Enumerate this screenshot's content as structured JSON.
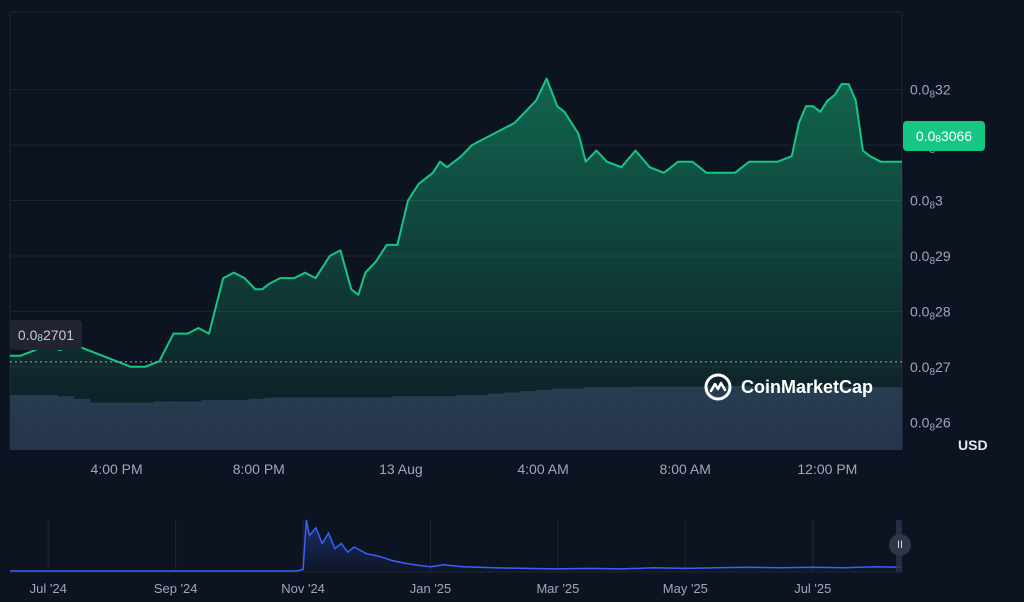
{
  "chart_data": [
    {
      "type": "area",
      "currency": "USD",
      "current_price": {
        "prefix": "0.0",
        "subscript": "8",
        "digits": "3066"
      },
      "open_price": {
        "prefix": "0.0",
        "subscript": "8",
        "digits": "2701"
      },
      "y_ticks": [
        {
          "value": 2.6e-09,
          "prefix": "0.0",
          "subscript": "8",
          "digits": "26"
        },
        {
          "value": 2.7e-09,
          "prefix": "0.0",
          "subscript": "8",
          "digits": "27"
        },
        {
          "value": 2.8e-09,
          "prefix": "0.0",
          "subscript": "8",
          "digits": "28"
        },
        {
          "value": 2.9e-09,
          "prefix": "0.0",
          "subscript": "8",
          "digits": "29"
        },
        {
          "value": 3e-09,
          "prefix": "0.0",
          "subscript": "8",
          "digits": "3"
        },
        {
          "value": 3.1e-09,
          "prefix": "0.0",
          "subscript": "8",
          "digits": "31"
        },
        {
          "value": 3.2e-09,
          "prefix": "0.0",
          "subscript": "8",
          "digits": "32"
        }
      ],
      "ylim": [
        2.55e-09,
        3.34e-09
      ],
      "x_ticks": [
        "4:00 PM",
        "8:00 PM",
        "13 Aug",
        "4:00 AM",
        "8:00 AM",
        "12:00 PM"
      ],
      "x_tick_hours": [
        16,
        20,
        24,
        28,
        32,
        36
      ],
      "xlim_hours": [
        13,
        38.1
      ],
      "series": [
        {
          "x_hours": [
            13.0,
            13.3,
            13.7,
            14.0,
            14.4,
            14.8,
            15.2,
            15.6,
            16.0,
            16.4,
            16.8,
            17.2,
            17.6,
            18.0,
            18.3,
            18.6,
            19.0,
            19.3,
            19.6,
            19.9,
            20.1,
            20.3,
            20.6,
            21.0,
            21.3,
            21.6,
            22.0,
            22.3,
            22.6,
            22.8,
            23.0,
            23.3,
            23.6,
            23.9,
            24.2,
            24.5,
            24.7,
            24.9,
            25.1,
            25.3,
            25.5,
            25.7,
            26.0,
            26.3,
            26.6,
            26.9,
            27.2,
            27.5,
            27.8,
            28.1,
            28.4,
            28.6,
            28.8,
            29.0,
            29.2,
            29.5,
            29.8,
            30.2,
            30.6,
            31.0,
            31.4,
            31.8,
            32.2,
            32.6,
            33.0,
            33.4,
            33.8,
            34.2,
            34.6,
            35.0,
            35.2,
            35.4,
            35.6,
            35.8,
            36.0,
            36.2,
            36.4,
            36.6,
            36.8,
            37.0,
            37.2,
            37.5,
            37.8,
            38.1
          ],
          "values": [
            2.72e-09,
            2.72e-09,
            2.73e-09,
            2.74e-09,
            2.73e-09,
            2.74e-09,
            2.73e-09,
            2.72e-09,
            2.71e-09,
            2.7e-09,
            2.7e-09,
            2.71e-09,
            2.76e-09,
            2.76e-09,
            2.77e-09,
            2.76e-09,
            2.86e-09,
            2.87e-09,
            2.86e-09,
            2.84e-09,
            2.84e-09,
            2.85e-09,
            2.86e-09,
            2.86e-09,
            2.87e-09,
            2.86e-09,
            2.9e-09,
            2.91e-09,
            2.84e-09,
            2.83e-09,
            2.87e-09,
            2.89e-09,
            2.92e-09,
            2.92e-09,
            3e-09,
            3.03e-09,
            3.04e-09,
            3.05e-09,
            3.07e-09,
            3.06e-09,
            3.07e-09,
            3.08e-09,
            3.1e-09,
            3.11e-09,
            3.12e-09,
            3.13e-09,
            3.14e-09,
            3.16e-09,
            3.18e-09,
            3.22e-09,
            3.17e-09,
            3.16e-09,
            3.14e-09,
            3.12e-09,
            3.07e-09,
            3.09e-09,
            3.07e-09,
            3.06e-09,
            3.09e-09,
            3.06e-09,
            3.05e-09,
            3.07e-09,
            3.07e-09,
            3.05e-09,
            3.05e-09,
            3.05e-09,
            3.07e-09,
            3.07e-09,
            3.07e-09,
            3.08e-09,
            3.14e-09,
            3.17e-09,
            3.17e-09,
            3.16e-09,
            3.18e-09,
            3.19e-09,
            3.21e-09,
            3.21e-09,
            3.18e-09,
            3.09e-09,
            3.08e-09,
            3.07e-09,
            3.07e-09,
            3.07e-09
          ]
        }
      ],
      "volume_relative": [
        0.86,
        0.86,
        0.86,
        0.84,
        0.8,
        0.74,
        0.74,
        0.74,
        0.74,
        0.76,
        0.76,
        0.76,
        0.78,
        0.78,
        0.78,
        0.8,
        0.82,
        0.82,
        0.82,
        0.82,
        0.82,
        0.82,
        0.82,
        0.82,
        0.84,
        0.84,
        0.84,
        0.84,
        0.86,
        0.86,
        0.88,
        0.9,
        0.92,
        0.94,
        0.96,
        0.96,
        0.98,
        0.98,
        0.98,
        0.99,
        0.99,
        0.99,
        0.99,
        0.99,
        1.0,
        1.0,
        1.0,
        1.0,
        0.98,
        0.98,
        0.98,
        0.98,
        0.98,
        0.98,
        0.98,
        0.98
      ]
    },
    {
      "type": "area",
      "x_ticks": [
        "Jul '24",
        "Sep '24",
        "Nov '24",
        "Jan '25",
        "Mar '25",
        "May '25",
        "Jul '25"
      ],
      "x_tick_months": [
        0,
        2,
        4,
        6,
        8,
        10,
        12
      ],
      "xlim_months": [
        -0.6,
        13.4
      ],
      "series": [
        {
          "x_months": [
            -0.6,
            0.0,
            1.0,
            2.0,
            3.0,
            3.9,
            4.0,
            4.05,
            4.1,
            4.2,
            4.3,
            4.4,
            4.5,
            4.6,
            4.7,
            4.8,
            5.0,
            5.2,
            5.4,
            5.6,
            5.8,
            6.0,
            6.2,
            6.5,
            7.0,
            7.5,
            8.0,
            8.5,
            9.0,
            9.5,
            10.0,
            10.5,
            11.0,
            11.5,
            12.0,
            12.5,
            13.0,
            13.4
          ],
          "values": [
            0.02,
            0.02,
            0.02,
            0.02,
            0.02,
            0.02,
            0.05,
            1.0,
            0.7,
            0.85,
            0.55,
            0.75,
            0.45,
            0.55,
            0.38,
            0.48,
            0.35,
            0.3,
            0.22,
            0.17,
            0.13,
            0.1,
            0.14,
            0.1,
            0.08,
            0.07,
            0.06,
            0.07,
            0.06,
            0.08,
            0.07,
            0.08,
            0.09,
            0.08,
            0.09,
            0.08,
            0.1,
            0.09
          ]
        }
      ]
    }
  ],
  "brand": {
    "name": "CoinMarketCap",
    "icon": "coinmarketcap-logo-icon"
  },
  "controls": {
    "pause_icon": "pause-icon",
    "pause_glyph": "II"
  },
  "colors": {
    "background": "#0d1421",
    "line": "#16c784",
    "badge": "#16c784",
    "volume": "#2a3350",
    "mini_line": "#3861fb",
    "grid": "#222531"
  }
}
